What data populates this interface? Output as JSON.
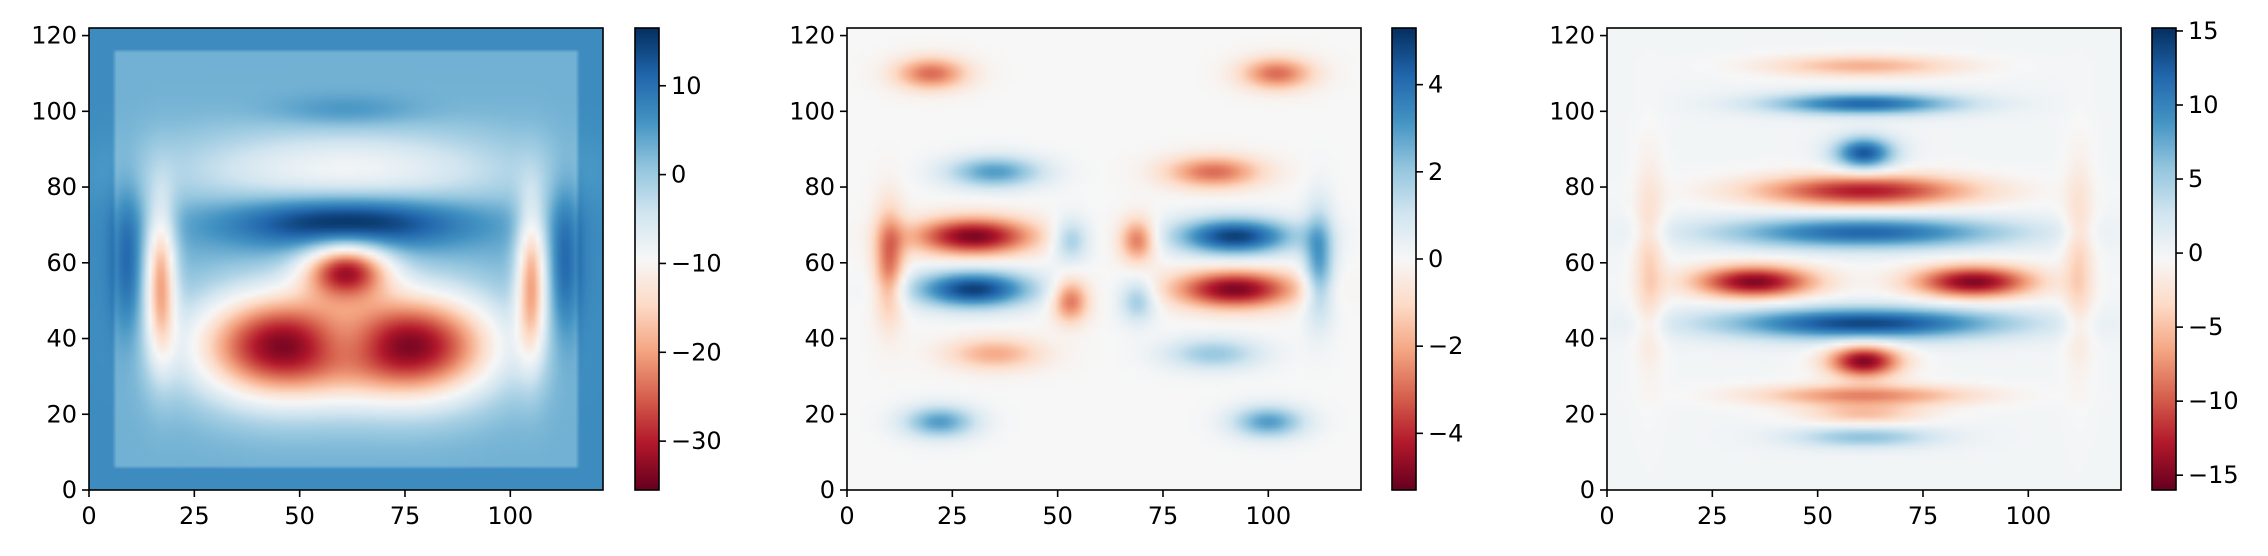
{
  "chart_data": [
    {
      "type": "heatmap",
      "title": "",
      "xlabel": "",
      "ylabel": "",
      "xlim": [
        0,
        122
      ],
      "ylim": [
        0,
        122
      ],
      "xticks": [
        0,
        25,
        50,
        75,
        100
      ],
      "yticks": [
        0,
        20,
        40,
        60,
        80,
        100,
        120
      ],
      "colormap": "RdBu",
      "colorbar": {
        "min": -35.5,
        "max": 16.5,
        "ticks": [
          -30,
          -20,
          -10,
          0,
          10
        ]
      },
      "features": [
        {
          "x": 45,
          "y": 38,
          "sx": 14,
          "sy": 10,
          "v": -35
        },
        {
          "x": 77,
          "y": 38,
          "sx": 14,
          "sy": 10,
          "v": -35
        },
        {
          "x": 61,
          "y": 58,
          "sx": 7,
          "sy": 5,
          "v": -30
        },
        {
          "x": 61,
          "y": 39,
          "sx": 7,
          "sy": 6,
          "v": 10
        },
        {
          "x": 61,
          "y": 71,
          "sx": 20,
          "sy": 5,
          "v": 17
        },
        {
          "x": 61,
          "y": 84,
          "sx": 28,
          "sy": 8,
          "v": -12
        },
        {
          "x": 61,
          "y": 100,
          "sx": 12,
          "sy": 3,
          "v": 4
        },
        {
          "x": 17,
          "y": 55,
          "sx": 2.5,
          "sy": 14,
          "v": -22
        },
        {
          "x": 105,
          "y": 55,
          "sx": 2.5,
          "sy": 14,
          "v": -22
        },
        {
          "x": 9,
          "y": 60,
          "sx": 2.5,
          "sy": 14,
          "v": 8
        },
        {
          "x": 113,
          "y": 60,
          "sx": 2.5,
          "sy": 14,
          "v": 8
        }
      ]
    },
    {
      "type": "heatmap",
      "title": "",
      "xlabel": "",
      "ylabel": "",
      "xlim": [
        0,
        122
      ],
      "ylim": [
        0,
        122
      ],
      "xticks": [
        0,
        25,
        50,
        75,
        100
      ],
      "yticks": [
        0,
        20,
        40,
        60,
        80,
        100,
        120
      ],
      "colormap": "RdBu",
      "colorbar": {
        "min": -5.3,
        "max": 5.3,
        "ticks": [
          -4,
          -2,
          0,
          2,
          4
        ]
      },
      "features": [
        {
          "x": 30,
          "y": 67,
          "sx": 10,
          "sy": 3.5,
          "v": -5
        },
        {
          "x": 30,
          "y": 53,
          "sx": 10,
          "sy": 3.5,
          "v": 5
        },
        {
          "x": 92,
          "y": 67,
          "sx": 10,
          "sy": 3.5,
          "v": 5
        },
        {
          "x": 92,
          "y": 53,
          "sx": 10,
          "sy": 3.5,
          "v": -5
        },
        {
          "x": 53,
          "y": 66,
          "sx": 3,
          "sy": 4,
          "v": 2
        },
        {
          "x": 69,
          "y": 66,
          "sx": 3,
          "sy": 4,
          "v": -3
        },
        {
          "x": 53,
          "y": 50,
          "sx": 3,
          "sy": 4,
          "v": -3
        },
        {
          "x": 69,
          "y": 50,
          "sx": 3,
          "sy": 4,
          "v": 2
        },
        {
          "x": 35,
          "y": 84,
          "sx": 8,
          "sy": 3,
          "v": 3
        },
        {
          "x": 87,
          "y": 84,
          "sx": 8,
          "sy": 3,
          "v": -3
        },
        {
          "x": 35,
          "y": 36,
          "sx": 8,
          "sy": 3,
          "v": -2
        },
        {
          "x": 87,
          "y": 36,
          "sx": 8,
          "sy": 3,
          "v": 2
        },
        {
          "x": 20,
          "y": 110,
          "sx": 6,
          "sy": 3,
          "v": -3
        },
        {
          "x": 102,
          "y": 110,
          "sx": 6,
          "sy": 3,
          "v": -3
        },
        {
          "x": 22,
          "y": 18,
          "sx": 6,
          "sy": 3,
          "v": 3
        },
        {
          "x": 100,
          "y": 18,
          "sx": 6,
          "sy": 3,
          "v": 3
        },
        {
          "x": 10,
          "y": 60,
          "sx": 2.5,
          "sy": 10,
          "v": -3
        },
        {
          "x": 112,
          "y": 60,
          "sx": 2.5,
          "sy": 10,
          "v": 3
        }
      ]
    },
    {
      "type": "heatmap",
      "title": "",
      "xlabel": "",
      "ylabel": "",
      "xlim": [
        0,
        122
      ],
      "ylim": [
        0,
        122
      ],
      "xticks": [
        0,
        25,
        50,
        75,
        100
      ],
      "yticks": [
        0,
        20,
        40,
        60,
        80,
        100,
        120
      ],
      "colormap": "RdBu",
      "colorbar": {
        "min": -16,
        "max": 15.2,
        "ticks": [
          -15,
          -10,
          -5,
          0,
          5,
          10,
          15
        ]
      },
      "features": [
        {
          "x": 35,
          "y": 55,
          "sx": 10,
          "sy": 3,
          "v": -15
        },
        {
          "x": 87,
          "y": 55,
          "sx": 10,
          "sy": 3,
          "v": -15
        },
        {
          "x": 61,
          "y": 44,
          "sx": 24,
          "sy": 3,
          "v": 14
        },
        {
          "x": 61,
          "y": 68,
          "sx": 24,
          "sy": 3,
          "v": 12
        },
        {
          "x": 61,
          "y": 79,
          "sx": 18,
          "sy": 3,
          "v": -13
        },
        {
          "x": 61,
          "y": 34,
          "sx": 6,
          "sy": 3,
          "v": -15
        },
        {
          "x": 61,
          "y": 89,
          "sx": 5,
          "sy": 3,
          "v": 13
        },
        {
          "x": 61,
          "y": 102,
          "sx": 16,
          "sy": 2,
          "v": 12
        },
        {
          "x": 61,
          "y": 112,
          "sx": 16,
          "sy": 2,
          "v": -6
        },
        {
          "x": 61,
          "y": 25,
          "sx": 18,
          "sy": 2,
          "v": -8
        },
        {
          "x": 61,
          "y": 14,
          "sx": 12,
          "sy": 2,
          "v": 6
        },
        {
          "x": 61,
          "y": 20,
          "sx": 10,
          "sy": 2,
          "v": -5
        },
        {
          "x": 10,
          "y": 60,
          "sx": 2.5,
          "sy": 18,
          "v": -4
        },
        {
          "x": 112,
          "y": 60,
          "sx": 2.5,
          "sy": 18,
          "v": -4
        }
      ]
    }
  ]
}
